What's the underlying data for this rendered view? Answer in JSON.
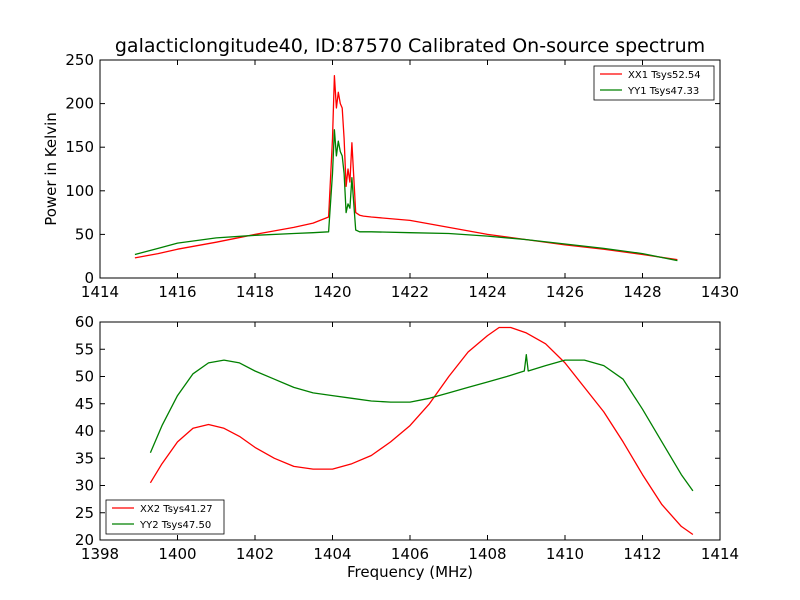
{
  "chart_data": [
    {
      "type": "line",
      "title": "galacticlongitude40, ID:87570 Calibrated On-source spectrum",
      "xlabel": "",
      "ylabel": "Power in Kelvin",
      "xlim": [
        1414,
        1430
      ],
      "ylim": [
        0,
        250
      ],
      "xticks": [
        1414,
        1416,
        1418,
        1420,
        1422,
        1424,
        1426,
        1428,
        1430
      ],
      "yticks": [
        0,
        50,
        100,
        150,
        200,
        250
      ],
      "legend_position": "upper right",
      "grid": false,
      "series": [
        {
          "name": "XX1 Tsys52.54",
          "color": "#ff0000",
          "x": [
            1414.9,
            1415.5,
            1416,
            1417,
            1418,
            1419,
            1419.5,
            1419.9,
            1420.0,
            1420.05,
            1420.1,
            1420.15,
            1420.2,
            1420.25,
            1420.3,
            1420.35,
            1420.4,
            1420.45,
            1420.5,
            1420.55,
            1420.6,
            1420.7,
            1420.8,
            1421,
            1422,
            1423,
            1424,
            1425,
            1426,
            1427,
            1428,
            1428.9
          ],
          "y": [
            23,
            28,
            33,
            41,
            50,
            58,
            63,
            70,
            160,
            232,
            195,
            213,
            200,
            195,
            160,
            105,
            125,
            110,
            155,
            115,
            75,
            72,
            71,
            70,
            66,
            58,
            50,
            44,
            38,
            33,
            27,
            21
          ]
        },
        {
          "name": "YY1 Tsys47.33",
          "color": "#008000",
          "x": [
            1414.9,
            1415.5,
            1416,
            1417,
            1418,
            1419,
            1419.5,
            1419.9,
            1420.0,
            1420.05,
            1420.1,
            1420.15,
            1420.2,
            1420.25,
            1420.3,
            1420.35,
            1420.4,
            1420.45,
            1420.5,
            1420.55,
            1420.6,
            1420.7,
            1420.8,
            1421,
            1422,
            1423,
            1424,
            1425,
            1426,
            1427,
            1428,
            1428.9
          ],
          "y": [
            27,
            34,
            40,
            46,
            49,
            51,
            52,
            53,
            120,
            170,
            140,
            157,
            145,
            140,
            120,
            75,
            85,
            80,
            115,
            85,
            55,
            53,
            53,
            53,
            52,
            51,
            48,
            44,
            39,
            34,
            28,
            20
          ]
        }
      ]
    },
    {
      "type": "line",
      "title": "",
      "xlabel": "Frequency (MHz)",
      "ylabel": "",
      "xlim": [
        1398,
        1414
      ],
      "ylim": [
        20,
        60
      ],
      "xticks": [
        1398,
        1400,
        1402,
        1404,
        1406,
        1408,
        1410,
        1412,
        1414
      ],
      "yticks": [
        20,
        25,
        30,
        35,
        40,
        45,
        50,
        55,
        60
      ],
      "legend_position": "lower left",
      "grid": false,
      "series": [
        {
          "name": "XX2 Tsys41.27",
          "color": "#ff0000",
          "x": [
            1399.3,
            1399.6,
            1400,
            1400.4,
            1400.8,
            1401.2,
            1401.6,
            1402,
            1402.5,
            1403,
            1403.5,
            1404,
            1404.5,
            1405,
            1405.5,
            1406,
            1406.5,
            1407,
            1407.5,
            1408,
            1408.3,
            1408.6,
            1409,
            1409.5,
            1410,
            1410.5,
            1411,
            1411.5,
            1412,
            1412.5,
            1413,
            1413.3
          ],
          "y": [
            30.5,
            34,
            38,
            40.5,
            41.2,
            40.5,
            39,
            37,
            35,
            33.5,
            33,
            33,
            34,
            35.5,
            38,
            41,
            45,
            50,
            54.5,
            57.5,
            59,
            59,
            58,
            56,
            52.5,
            48,
            43.5,
            38,
            32,
            26.5,
            22.5,
            21
          ]
        },
        {
          "name": "YY2 Tsys47.50",
          "color": "#008000",
          "x": [
            1399.3,
            1399.6,
            1400,
            1400.4,
            1400.8,
            1401.2,
            1401.6,
            1402,
            1402.5,
            1403,
            1403.5,
            1404,
            1404.5,
            1405,
            1405.5,
            1406,
            1406.5,
            1407,
            1407.5,
            1408,
            1408.5,
            1408.95,
            1409.0,
            1409.05,
            1409.5,
            1410,
            1410.5,
            1411,
            1411.5,
            1412,
            1412.5,
            1413,
            1413.3
          ],
          "y": [
            36,
            41,
            46.5,
            50.5,
            52.5,
            53,
            52.5,
            51,
            49.5,
            48,
            47,
            46.5,
            46,
            45.5,
            45.3,
            45.3,
            46,
            47,
            48,
            49,
            50,
            51,
            54,
            51,
            52,
            53,
            53,
            52,
            49.5,
            44,
            38,
            32,
            29
          ]
        }
      ]
    }
  ]
}
